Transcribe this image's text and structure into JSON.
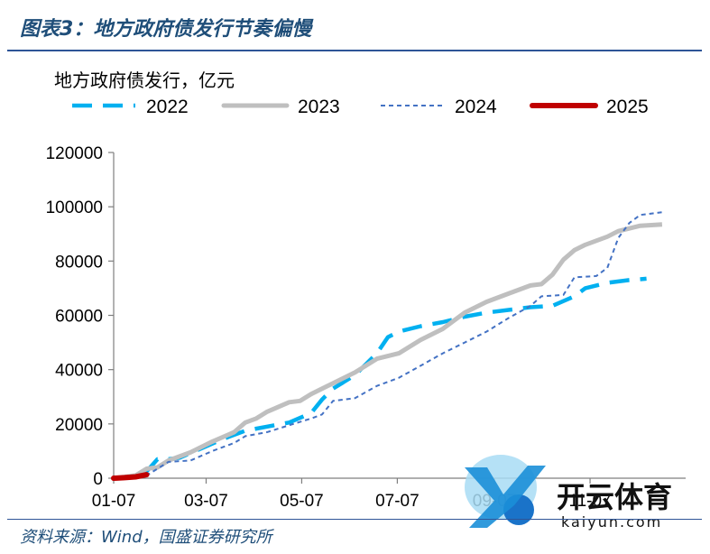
{
  "figure": {
    "title": "图表3：地方政府债发行节奏偏慢",
    "source": "资料来源：Wind，国盛证券研究所"
  },
  "watermark": {
    "brand": "开云体育",
    "url": "kaiyun.com"
  },
  "chart_data": {
    "type": "line",
    "ylabel": "地方政府债发行，亿元",
    "ylim": [
      0,
      120000
    ],
    "yticks": [
      0,
      20000,
      40000,
      60000,
      80000,
      100000,
      120000
    ],
    "xticks": [
      {
        "label": "01-07",
        "day": 0
      },
      {
        "label": "03-07",
        "day": 59
      },
      {
        "label": "05-07",
        "day": 120
      },
      {
        "label": "07-07",
        "day": 181
      },
      {
        "label": "09-07",
        "day": 243
      },
      {
        "label": "11-07",
        "day": 304
      }
    ],
    "xlim_days": [
      0,
      365
    ],
    "legend_position": "top",
    "grid": false,
    "series": [
      {
        "name": "2022",
        "color": "#00b0f0",
        "style": "long-dash",
        "points": [
          [
            0,
            0
          ],
          [
            14,
            800
          ],
          [
            21,
            2500
          ],
          [
            28,
            7000
          ],
          [
            35,
            7000
          ],
          [
            42,
            7500
          ],
          [
            56,
            11000
          ],
          [
            70,
            14500
          ],
          [
            84,
            17500
          ],
          [
            98,
            19000
          ],
          [
            112,
            20500
          ],
          [
            126,
            24000
          ],
          [
            133,
            29000
          ],
          [
            140,
            33000
          ],
          [
            154,
            38000
          ],
          [
            168,
            46000
          ],
          [
            175,
            52000
          ],
          [
            182,
            54000
          ],
          [
            196,
            56000
          ],
          [
            210,
            57500
          ],
          [
            224,
            59500
          ],
          [
            238,
            61000
          ],
          [
            252,
            62000
          ],
          [
            266,
            63000
          ],
          [
            280,
            63500
          ],
          [
            294,
            67000
          ],
          [
            301,
            70000
          ],
          [
            315,
            72000
          ],
          [
            329,
            73000
          ],
          [
            340,
            73500
          ]
        ]
      },
      {
        "name": "2023",
        "color": "#bfbfbf",
        "style": "solid",
        "points": [
          [
            0,
            0
          ],
          [
            14,
            1000
          ],
          [
            21,
            3500
          ],
          [
            28,
            4000
          ],
          [
            35,
            6500
          ],
          [
            49,
            9500
          ],
          [
            63,
            13500
          ],
          [
            77,
            17000
          ],
          [
            84,
            20500
          ],
          [
            91,
            22000
          ],
          [
            98,
            24500
          ],
          [
            112,
            28000
          ],
          [
            119,
            28500
          ],
          [
            126,
            31000
          ],
          [
            133,
            33000
          ],
          [
            140,
            35000
          ],
          [
            154,
            39000
          ],
          [
            168,
            44000
          ],
          [
            182,
            46000
          ],
          [
            196,
            51000
          ],
          [
            210,
            55000
          ],
          [
            224,
            61000
          ],
          [
            238,
            65000
          ],
          [
            252,
            68000
          ],
          [
            266,
            71000
          ],
          [
            273,
            71500
          ],
          [
            280,
            75000
          ],
          [
            287,
            80500
          ],
          [
            294,
            84000
          ],
          [
            301,
            86000
          ],
          [
            315,
            89000
          ],
          [
            322,
            91000
          ],
          [
            336,
            93000
          ],
          [
            350,
            93500
          ]
        ]
      },
      {
        "name": "2024",
        "color": "#4472c4",
        "style": "short-dash",
        "points": [
          [
            0,
            0
          ],
          [
            14,
            200
          ],
          [
            21,
            1000
          ],
          [
            28,
            3500
          ],
          [
            35,
            6000
          ],
          [
            49,
            6500
          ],
          [
            63,
            10000
          ],
          [
            77,
            13000
          ],
          [
            84,
            15500
          ],
          [
            98,
            17000
          ],
          [
            112,
            19500
          ],
          [
            126,
            22000
          ],
          [
            133,
            23500
          ],
          [
            140,
            28500
          ],
          [
            154,
            29500
          ],
          [
            168,
            34000
          ],
          [
            182,
            37000
          ],
          [
            196,
            41500
          ],
          [
            210,
            46000
          ],
          [
            224,
            50000
          ],
          [
            238,
            54000
          ],
          [
            252,
            59000
          ],
          [
            266,
            63500
          ],
          [
            273,
            67000
          ],
          [
            287,
            67500
          ],
          [
            294,
            74000
          ],
          [
            308,
            74500
          ],
          [
            315,
            77500
          ],
          [
            322,
            88500
          ],
          [
            329,
            94000
          ],
          [
            336,
            97000
          ],
          [
            350,
            98000
          ]
        ]
      },
      {
        "name": "2025",
        "color": "#c00000",
        "style": "solid-thick",
        "points": [
          [
            0,
            0
          ],
          [
            7,
            200
          ],
          [
            14,
            500
          ],
          [
            21,
            1300
          ]
        ]
      }
    ]
  }
}
